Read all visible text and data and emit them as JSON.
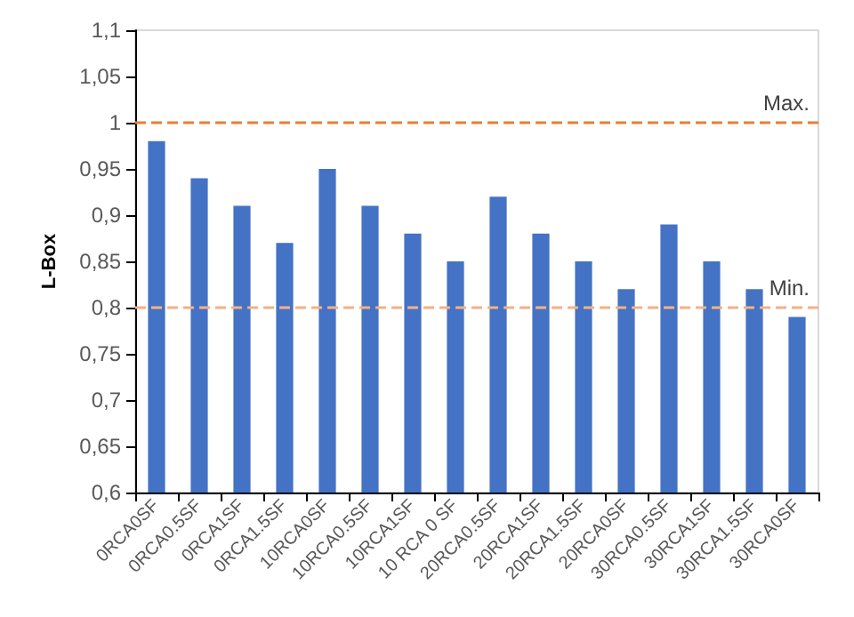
{
  "chart_data": {
    "type": "bar",
    "ylabel": "L-Box",
    "categories": [
      "0RCA0SF",
      "0RCA0.5SF",
      "0RCA1SF",
      "0RCA1.5SF",
      "10RCA0SF",
      "10RCA0.5SF",
      "10RCA1SF",
      "10 RCA 0 SF",
      "20RCA0.5SF",
      "20RCA1SF",
      "20RCA1.5SF",
      "20RCA0SF",
      "30RCA0.5SF",
      "30RCA1SF",
      "30RCA1.5SF",
      "30RCA0SF"
    ],
    "values": [
      0.98,
      0.94,
      0.91,
      0.87,
      0.95,
      0.91,
      0.88,
      0.85,
      0.92,
      0.88,
      0.85,
      0.82,
      0.89,
      0.85,
      0.82,
      0.79
    ],
    "color": "#4472c4",
    "ylim": [
      0.6,
      1.1
    ],
    "yticks": [
      {
        "value": 0.6,
        "label": "0,6"
      },
      {
        "value": 0.65,
        "label": "0,65"
      },
      {
        "value": 0.7,
        "label": "0,7"
      },
      {
        "value": 0.75,
        "label": "0,75"
      },
      {
        "value": 0.8,
        "label": "0,8"
      },
      {
        "value": 0.85,
        "label": "0,85"
      },
      {
        "value": 0.9,
        "label": "0,9"
      },
      {
        "value": 0.95,
        "label": "0,95"
      },
      {
        "value": 1,
        "label": "1"
      },
      {
        "value": 1.05,
        "label": "1,05"
      },
      {
        "value": 1.1,
        "label": "1,1"
      }
    ],
    "ref_lines": [
      {
        "axis": "y",
        "value": 1,
        "label": "Max.",
        "color": "#ed7d31",
        "line_style": "dashed"
      },
      {
        "axis": "y",
        "value": 0.8,
        "label": "Min.",
        "color": "#f4b183",
        "line_style": "dashed"
      }
    ],
    "grid": false
  }
}
